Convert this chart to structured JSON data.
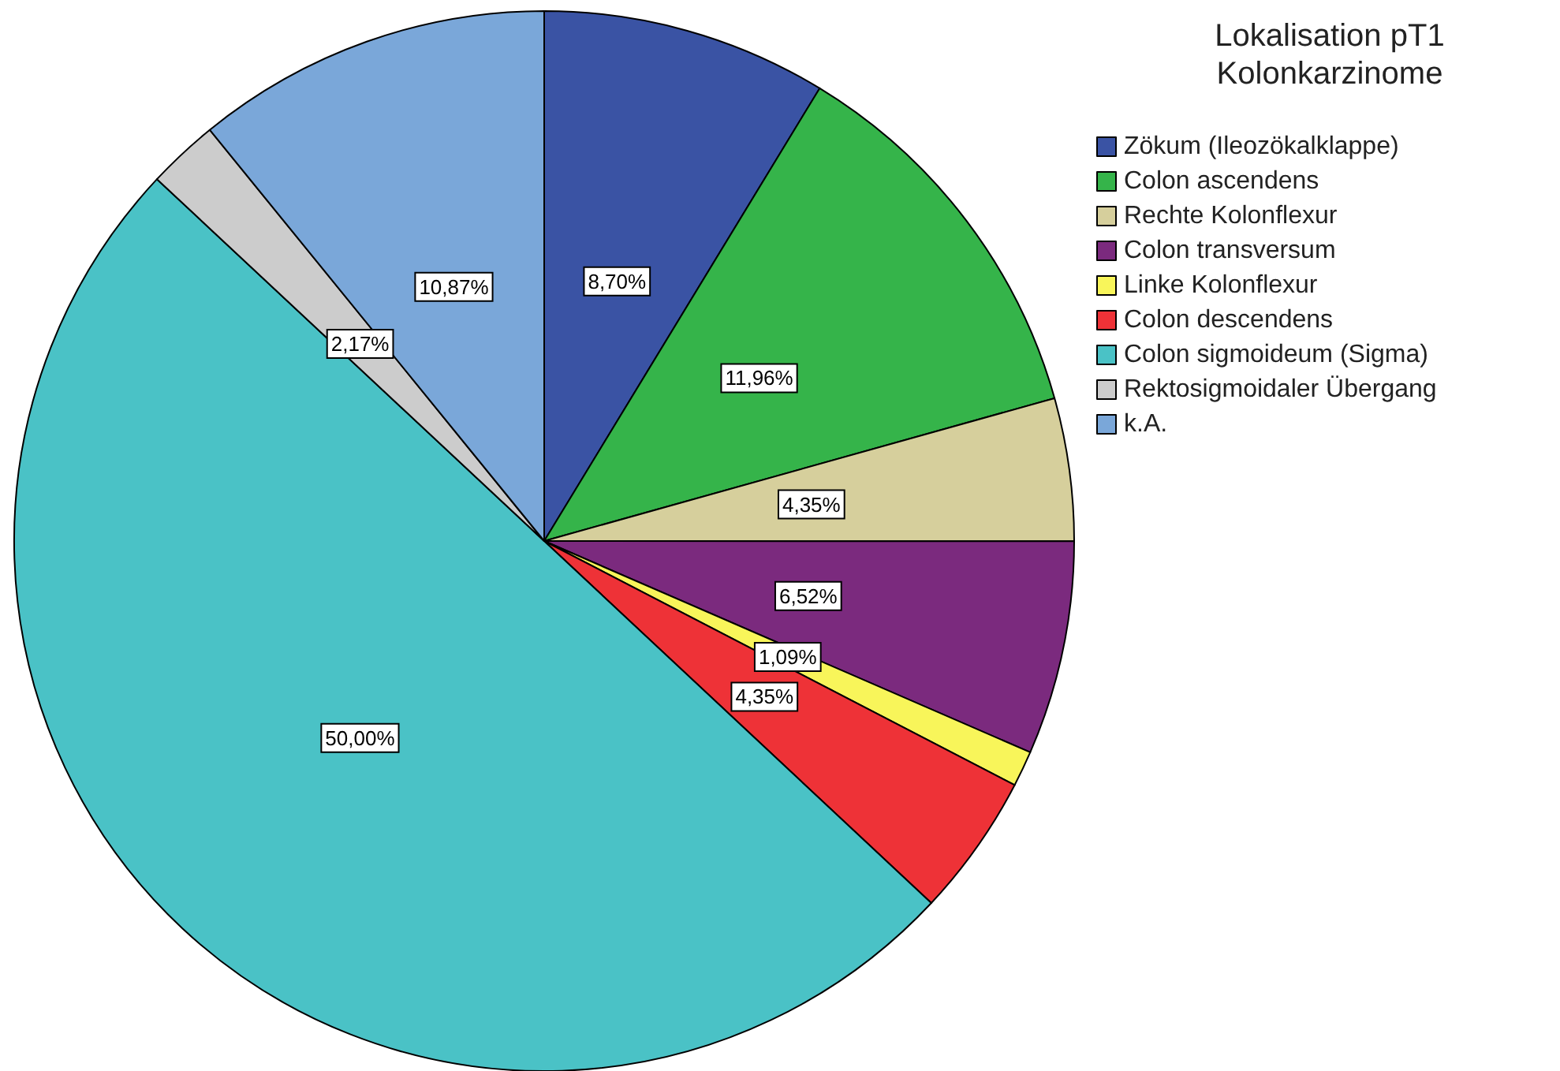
{
  "chart_data": {
    "type": "pie",
    "legend_title": "Lokalisation pT1\nKolonkarzinome",
    "categories": [
      "Zökum (Ileozökalklappe)",
      "Colon ascendens",
      "Rechte Kolonflexur",
      "Colon transversum",
      "Linke Kolonflexur",
      "Colon descendens",
      "Colon sigmoideum (Sigma)",
      "Rektosigmoidaler Übergang",
      "k.A."
    ],
    "values": [
      8.7,
      11.96,
      4.35,
      6.52,
      1.09,
      4.35,
      50.0,
      2.17,
      10.87
    ],
    "colors": [
      "#3a53a4",
      "#35b44a",
      "#d6cf9c",
      "#7b2a7e",
      "#f8f55a",
      "#ee3237",
      "#4ac2c6",
      "#cccccc",
      "#7aa7d9"
    ],
    "value_labels": [
      "8,70%",
      "11,96%",
      "4,35%",
      "6,52%",
      "1,09%",
      "4,35%",
      "50,00%",
      "2,17%",
      "10,87%"
    ],
    "legend": "top right"
  }
}
